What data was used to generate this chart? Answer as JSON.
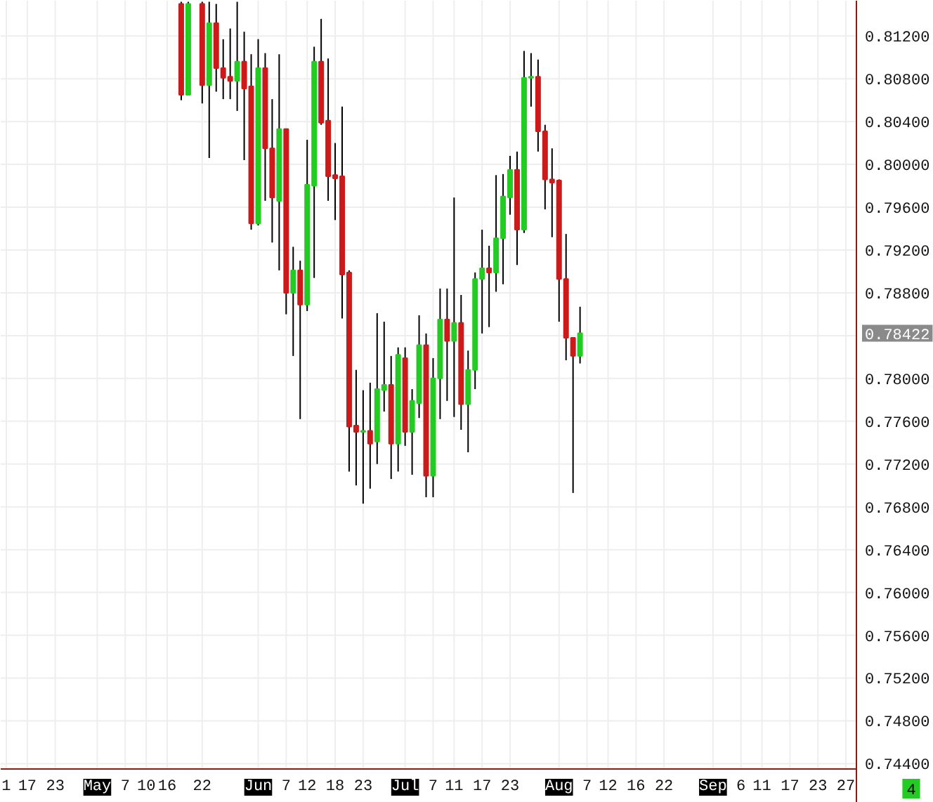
{
  "chart_data": {
    "type": "candlestick",
    "categories": [
      "1",
      null,
      null,
      "17",
      null,
      null,
      null,
      "23",
      null,
      null,
      null,
      null,
      null,
      "May",
      null,
      null,
      null,
      "7",
      null,
      null,
      "10",
      null,
      null,
      "16",
      null,
      null,
      null,
      null,
      "22",
      null,
      null,
      null,
      null,
      null,
      null,
      null,
      "Jun",
      null,
      null,
      null,
      "7",
      null,
      null,
      "12",
      null,
      null,
      null,
      "18",
      null,
      null,
      null,
      "23",
      null,
      null,
      null,
      null,
      null,
      "Jul",
      null,
      null,
      null,
      "7",
      null,
      null,
      "11",
      null,
      null,
      null,
      "17",
      null,
      null,
      null,
      "23",
      null,
      null,
      null,
      null,
      null,
      null,
      "Aug",
      null,
      null,
      null,
      "7",
      null,
      null,
      "12",
      null,
      null,
      null,
      "16",
      null,
      null,
      null,
      "22",
      null,
      null,
      null,
      null,
      null,
      null,
      "Sep",
      null,
      null,
      null,
      "6",
      null,
      null,
      "11",
      null,
      null,
      null,
      "17",
      null,
      null,
      null,
      "23",
      null,
      null,
      null,
      "27",
      null
    ],
    "ohlc": [
      null,
      null,
      null,
      null,
      null,
      null,
      null,
      null,
      null,
      null,
      null,
      null,
      null,
      null,
      null,
      null,
      null,
      null,
      null,
      null,
      null,
      null,
      null,
      null,
      null,
      [
        0.815,
        0.8152,
        0.806,
        0.8065
      ],
      [
        0.8065,
        0.8152,
        0.8065,
        0.815
      ],
      null,
      [
        0.815,
        0.8152,
        0.8057,
        0.8074
      ],
      [
        0.8074,
        0.8152,
        0.8006,
        0.8132
      ],
      [
        0.8132,
        0.815,
        0.8068,
        0.809
      ],
      [
        0.809,
        0.8117,
        0.8061,
        0.8081
      ],
      [
        0.8082,
        0.8127,
        0.8061,
        0.8078
      ],
      [
        0.8078,
        0.8152,
        0.805,
        0.8096
      ],
      [
        0.8096,
        0.8124,
        0.8004,
        0.8071
      ],
      [
        0.8073,
        0.8103,
        0.7939,
        0.7945
      ],
      [
        0.7945,
        0.8117,
        0.7943,
        0.809
      ],
      [
        0.809,
        0.8104,
        0.7966,
        0.8015
      ],
      [
        0.8015,
        0.8061,
        0.7927,
        0.7969
      ],
      [
        0.7966,
        0.8103,
        0.7901,
        0.8033
      ],
      [
        0.8033,
        0.8033,
        0.786,
        0.788
      ],
      [
        0.788,
        0.7923,
        0.7821,
        0.7901
      ],
      [
        0.7901,
        0.791,
        0.7762,
        0.7869
      ],
      [
        0.7869,
        0.8023,
        0.7863,
        0.7981
      ],
      [
        0.798,
        0.811,
        0.7894,
        0.8096
      ],
      [
        0.8096,
        0.8136,
        0.8037,
        0.8039
      ],
      [
        0.8041,
        0.8099,
        0.7966,
        0.7989
      ],
      [
        0.799,
        0.802,
        0.7948,
        0.7987
      ],
      [
        0.7989,
        0.8054,
        0.7856,
        0.7897
      ],
      [
        0.7899,
        0.7901,
        0.7713,
        0.7755
      ],
      [
        0.7756,
        0.7808,
        0.77,
        0.775
      ],
      [
        0.775,
        0.7789,
        0.7683,
        0.7751
      ],
      [
        0.7751,
        0.7796,
        0.7697,
        0.7739
      ],
      [
        0.7741,
        0.7861,
        0.772,
        0.779
      ],
      [
        0.7789,
        0.7853,
        0.7769,
        0.7794
      ],
      [
        0.7794,
        0.7821,
        0.7706,
        0.7739
      ],
      [
        0.7739,
        0.7829,
        0.7713,
        0.7822
      ],
      [
        0.7819,
        0.7829,
        0.7737,
        0.775
      ],
      [
        0.775,
        0.779,
        0.771,
        0.7779
      ],
      [
        0.7777,
        0.7859,
        0.7763,
        0.7831
      ],
      [
        0.7831,
        0.7842,
        0.7689,
        0.7709
      ],
      [
        0.7709,
        0.7819,
        0.7689,
        0.78
      ],
      [
        0.78,
        0.7884,
        0.7762,
        0.7855
      ],
      [
        0.7855,
        0.7884,
        0.7779,
        0.7835
      ],
      [
        0.7835,
        0.7969,
        0.7764,
        0.7852
      ],
      [
        0.7852,
        0.7878,
        0.7752,
        0.7776
      ],
      [
        0.7776,
        0.7826,
        0.7731,
        0.7808
      ],
      [
        0.7808,
        0.7899,
        0.779,
        0.7893
      ],
      [
        0.7893,
        0.7939,
        0.7842,
        0.7903
      ],
      [
        0.7903,
        0.7924,
        0.7848,
        0.7899
      ],
      [
        0.7899,
        0.799,
        0.7881,
        0.7931
      ],
      [
        0.7931,
        0.7991,
        0.7888,
        0.797
      ],
      [
        0.7969,
        0.8008,
        0.7953,
        0.7995
      ],
      [
        0.7995,
        0.8012,
        0.7906,
        0.7939
      ],
      [
        0.7939,
        0.8106,
        0.7936,
        0.8081
      ],
      [
        0.8081,
        0.8104,
        0.8054,
        0.8082
      ],
      [
        0.8082,
        0.8098,
        0.8012,
        0.8031
      ],
      [
        0.8031,
        0.8037,
        0.7958,
        0.7986
      ],
      [
        0.7986,
        0.8015,
        0.7932,
        0.7983
      ],
      [
        0.7985,
        0.7986,
        0.7853,
        0.7893
      ],
      [
        0.7893,
        0.7935,
        0.7817,
        0.7838
      ],
      [
        0.7838,
        0.7838,
        0.7693,
        0.7821
      ],
      [
        0.7821,
        0.7867,
        0.7814,
        0.78422
      ],
      null,
      null,
      null,
      null,
      null,
      null,
      null,
      null,
      null,
      null,
      null,
      null,
      null,
      null,
      null,
      null,
      null,
      null,
      null,
      null,
      null,
      null,
      null,
      null,
      null,
      null,
      null,
      null,
      null,
      null,
      null,
      null,
      null,
      null,
      null,
      null,
      null,
      null,
      null
    ],
    "colors": [
      null,
      null,
      null,
      null,
      null,
      null,
      null,
      null,
      null,
      null,
      null,
      null,
      null,
      null,
      null,
      null,
      null,
      null,
      null,
      null,
      null,
      null,
      null,
      null,
      null,
      "#cc1a1a",
      "#22cc22",
      null,
      "#cc1a1a",
      "#22cc22",
      "#cc1a1a",
      "#cc1a1a",
      "#cc1a1a",
      "#22cc22",
      "#cc1a1a",
      "#cc1a1a",
      "#22cc22",
      "#cc1a1a",
      "#cc1a1a",
      "#22cc22",
      "#cc1a1a",
      "#22cc22",
      "#cc1a1a",
      "#22cc22",
      "#22cc22",
      "#cc1a1a",
      "#cc1a1a",
      "#cc1a1a",
      "#cc1a1a",
      "#cc1a1a",
      "#cc1a1a",
      "#22cc22",
      "#cc1a1a",
      "#22cc22",
      "#22cc22",
      "#cc1a1a",
      "#22cc22",
      "#cc1a1a",
      "#22cc22",
      "#22cc22",
      "#cc1a1a",
      "#22cc22",
      "#22cc22",
      "#cc1a1a",
      "#22cc22",
      "#cc1a1a",
      "#22cc22",
      "#22cc22",
      "#22cc22",
      "#cc1a1a",
      "#22cc22",
      "#22cc22",
      "#22cc22",
      "#cc1a1a",
      "#22cc22",
      "#22cc22",
      "#cc1a1a",
      "#cc1a1a",
      "#cc1a1a",
      "#cc1a1a",
      "#cc1a1a",
      "#cc1a1a",
      "#22cc22",
      null,
      null,
      null,
      null,
      null,
      null,
      null,
      null,
      null,
      null,
      null,
      null,
      null,
      null,
      null,
      null,
      null,
      null,
      null,
      null,
      null,
      null,
      null,
      null,
      null,
      null,
      null,
      null,
      null,
      null,
      null,
      null,
      null,
      null,
      null,
      null,
      null,
      null,
      null
    ],
    "ylim": [
      0.7435,
      0.8153
    ],
    "yticks": [
      {
        "value": 0.744,
        "label": "0.74400"
      },
      {
        "value": 0.748,
        "label": "0.74800"
      },
      {
        "value": 0.752,
        "label": "0.75200"
      },
      {
        "value": 0.756,
        "label": "0.75600"
      },
      {
        "value": 0.76,
        "label": "0.76000"
      },
      {
        "value": 0.764,
        "label": "0.76400"
      },
      {
        "value": 0.768,
        "label": "0.76800"
      },
      {
        "value": 0.772,
        "label": "0.77200"
      },
      {
        "value": 0.776,
        "label": "0.77600"
      },
      {
        "value": 0.78,
        "label": "0.78000"
      },
      {
        "value": 0.784,
        "label": null
      },
      {
        "value": 0.788,
        "label": "0.78800"
      },
      {
        "value": 0.792,
        "label": "0.79200"
      },
      {
        "value": 0.796,
        "label": "0.79600"
      },
      {
        "value": 0.8,
        "label": "0.80000"
      },
      {
        "value": 0.804,
        "label": "0.80400"
      },
      {
        "value": 0.808,
        "label": "0.80800"
      },
      {
        "value": 0.812,
        "label": "0.81200"
      }
    ],
    "annotations": [
      "0.78422",
      "4"
    ],
    "grid": true
  }
}
